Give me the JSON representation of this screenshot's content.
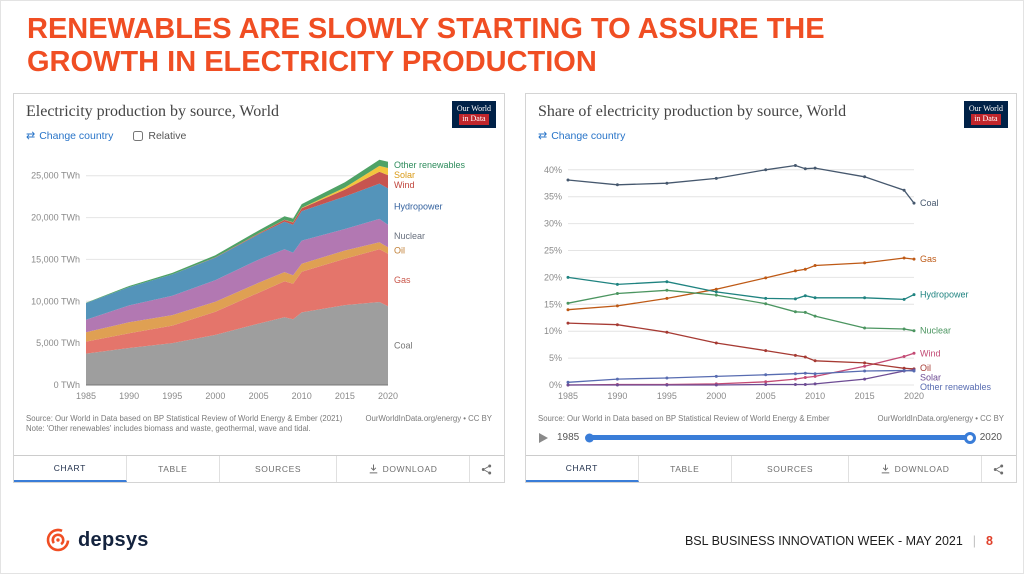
{
  "slide": {
    "title_line1": "RENEWABLES ARE SLOWLY STARTING TO ASSURE THE",
    "title_line2": "GROWTH IN ELECTRICITY PRODUCTION"
  },
  "colors": {
    "accent_orange": "#F04E23",
    "owid_navy": "#002147",
    "owid_red": "#C0262C",
    "timeline_blue": "#3A7DD8",
    "link_blue": "#2874C8"
  },
  "icons": {
    "change_country": "⇄"
  },
  "owid": {
    "line1": "Our World",
    "line2": "in Data"
  },
  "tabs": {
    "chart": "CHART",
    "table": "TABLE",
    "sources": "SOURCES",
    "download": "DOWNLOAD"
  },
  "left_panel": {
    "title": "Electricity production by source, World",
    "change_country": "Change country",
    "relative_label": "Relative",
    "source_left": "Source: Our World in Data based on BP Statistical Review of World Energy & Ember (2021)",
    "source_right": "OurWorldInData.org/energy • CC BY",
    "note": "Note: 'Other renewables' includes biomass and waste, geothermal, wave and tidal."
  },
  "right_panel": {
    "title": "Share of electricity production by source, World",
    "change_country": "Change country",
    "source_left": "Source: Our World in Data based on BP Statistical Review of World Energy & Ember",
    "source_right": "OurWorldInData.org/energy • CC BY",
    "timeline": {
      "start": "1985",
      "end": "2020"
    }
  },
  "footer": {
    "brand": "depsys",
    "event": "BSL BUSINESS INNOVATION WEEK - MAY 2021",
    "separator": "|",
    "page_number": "8"
  },
  "chart_data": [
    {
      "type": "area",
      "stacked": true,
      "title": "Electricity production by source, World",
      "xlabel": "",
      "ylabel": "TWh",
      "x": [
        1985,
        1990,
        1995,
        2000,
        2005,
        2008,
        2009,
        2010,
        2015,
        2019,
        2020
      ],
      "x_ticks": [
        1985,
        1990,
        1995,
        2000,
        2005,
        2010,
        2015,
        2020
      ],
      "ylim": [
        0,
        27000
      ],
      "y_ticks": [
        0,
        5000,
        10000,
        15000,
        20000,
        25000
      ],
      "y_tick_labels": [
        "0 TWh",
        "5,000 TWh",
        "10,000 TWh",
        "15,000 TWh",
        "20,000 TWh",
        "25,000 TWh"
      ],
      "grid": true,
      "legend_position": "right",
      "series": [
        {
          "name": "Coal",
          "color": "#9E9E9E",
          "label_color": "#757575",
          "values": [
            3750,
            4425,
            5000,
            5990,
            7330,
            8090,
            7850,
            8670,
            9540,
            9920,
            9420
          ]
        },
        {
          "name": "Gas",
          "color": "#E4756B",
          "label_color": "#C9564A",
          "values": [
            1440,
            1750,
            2100,
            2750,
            3700,
            4300,
            4240,
            4850,
            5540,
            6300,
            6270
          ]
        },
        {
          "name": "Oil",
          "color": "#DFA053",
          "label_color": "#C07F35",
          "values": [
            1120,
            1330,
            1250,
            1210,
            1180,
            1100,
            1030,
            970,
            990,
            830,
            760
          ]
        },
        {
          "name": "Nuclear",
          "color": "#B278B2",
          "label_color": "#68707E",
          "values": [
            1490,
            2000,
            2320,
            2580,
            2770,
            2730,
            2700,
            2760,
            2570,
            2790,
            2690
          ]
        },
        {
          "name": "Hydropower",
          "color": "#5494BA",
          "label_color": "#33619E",
          "values": [
            1980,
            2190,
            2540,
            2690,
            3020,
            3280,
            3320,
            3530,
            3880,
            4220,
            4350
          ]
        },
        {
          "name": "Wind",
          "color": "#C7544F",
          "label_color": "#C0453C",
          "values": [
            0,
            4,
            8,
            31,
            104,
            220,
            276,
            342,
            830,
            1420,
            1590
          ]
        },
        {
          "name": "Solar",
          "color": "#F3C53D",
          "label_color": "#D99A16",
          "values": [
            0,
            0,
            0,
            1,
            4,
            12,
            20,
            32,
            250,
            700,
            850
          ]
        },
        {
          "name": "Other renewables",
          "color": "#4FA266",
          "label_color": "#2E8C5C",
          "values": [
            50,
            130,
            180,
            250,
            350,
            420,
            440,
            460,
            620,
            720,
            750
          ]
        }
      ]
    },
    {
      "type": "line",
      "title": "Share of electricity production by source, World",
      "xlabel": "",
      "ylabel": "%",
      "x": [
        1985,
        1990,
        1995,
        2000,
        2005,
        2008,
        2009,
        2010,
        2015,
        2019,
        2020
      ],
      "x_ticks": [
        1985,
        1990,
        1995,
        2000,
        2005,
        2010,
        2015,
        2020
      ],
      "ylim": [
        0,
        42
      ],
      "y_ticks": [
        0,
        5,
        10,
        15,
        20,
        25,
        30,
        35,
        40
      ],
      "y_tick_labels": [
        "0%",
        "5%",
        "10%",
        "15%",
        "20%",
        "25%",
        "30%",
        "35%",
        "40%"
      ],
      "grid": true,
      "legend_position": "right",
      "series": [
        {
          "name": "Coal",
          "color": "#46586E",
          "label_color": "#46586E",
          "values": [
            38.1,
            37.2,
            37.5,
            38.4,
            40.0,
            40.8,
            40.2,
            40.3,
            38.7,
            36.2,
            33.8
          ]
        },
        {
          "name": "Gas",
          "color": "#BE5915",
          "label_color": "#BE5915",
          "values": [
            14.0,
            14.7,
            16.1,
            17.8,
            19.9,
            21.2,
            21.5,
            22.2,
            22.7,
            23.6,
            23.4
          ]
        },
        {
          "name": "Hydropower",
          "color": "#1F8380",
          "label_color": "#1F8380",
          "values": [
            20.0,
            18.7,
            19.2,
            17.3,
            16.1,
            16.0,
            16.6,
            16.2,
            16.2,
            15.9,
            16.8
          ]
        },
        {
          "name": "Nuclear",
          "color": "#4B9560",
          "label_color": "#4B9560",
          "values": [
            15.2,
            17.0,
            17.6,
            16.7,
            15.1,
            13.6,
            13.5,
            12.8,
            10.6,
            10.4,
            10.1
          ]
        },
        {
          "name": "Wind",
          "color": "#C34A74",
          "label_color": "#C34A74",
          "values": [
            0.0,
            0.1,
            0.1,
            0.2,
            0.6,
            1.1,
            1.4,
            1.6,
            3.5,
            5.3,
            5.9
          ]
        },
        {
          "name": "Oil",
          "color": "#A63A33",
          "label_color": "#A63A33",
          "values": [
            11.5,
            11.2,
            9.8,
            7.8,
            6.4,
            5.5,
            5.2,
            4.5,
            4.1,
            3.1,
            3.0
          ]
        },
        {
          "name": "Solar",
          "color": "#6D4C94",
          "label_color": "#6D4C94",
          "values": [
            0.0,
            0.0,
            0.0,
            0.0,
            0.1,
            0.1,
            0.1,
            0.2,
            1.1,
            2.6,
            2.8
          ]
        },
        {
          "name": "Other renewables",
          "color": "#586CB1",
          "label_color": "#586CB1",
          "values": [
            0.5,
            1.1,
            1.3,
            1.6,
            1.9,
            2.1,
            2.2,
            2.1,
            2.6,
            2.7,
            2.6
          ]
        }
      ]
    }
  ]
}
